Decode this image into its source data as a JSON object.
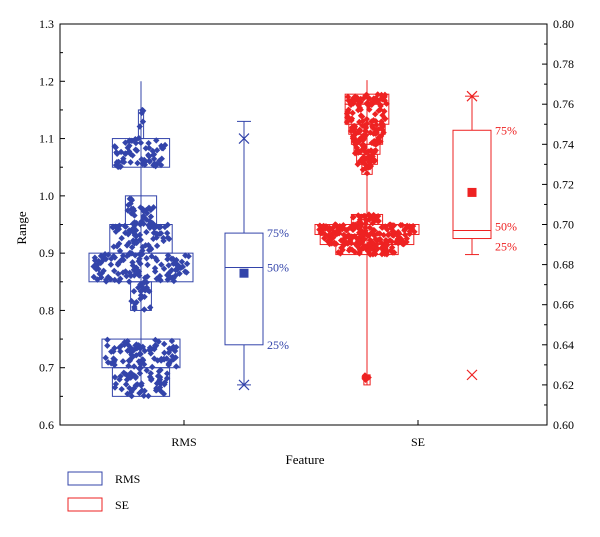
{
  "chart_data": {
    "type": "box_swarm",
    "xlabel": "Feature",
    "ylabel": "Range",
    "categories": [
      "RMS",
      "SE"
    ],
    "y_left": {
      "ylim": [
        0.6,
        1.3
      ],
      "ticks": [
        "0.6",
        "0.7",
        "0.8",
        "0.9",
        "1.0",
        "1.1",
        "1.2",
        "1.3"
      ]
    },
    "y_right": {
      "ylim": [
        0.6,
        0.8
      ],
      "ticks": [
        "0.60",
        "0.62",
        "0.64",
        "0.66",
        "0.68",
        "0.70",
        "0.72",
        "0.74",
        "0.76",
        "0.78",
        "0.80"
      ]
    },
    "series": [
      {
        "name": "RMS",
        "axis": "left",
        "color": "#3344aa",
        "histogram_bins": [
          {
            "lo": 0.65,
            "hi": 0.7,
            "rel_width": 0.55
          },
          {
            "lo": 0.7,
            "hi": 0.75,
            "rel_width": 0.75
          },
          {
            "lo": 0.8,
            "hi": 0.85,
            "rel_width": 0.2
          },
          {
            "lo": 0.85,
            "hi": 0.9,
            "rel_width": 1.0
          },
          {
            "lo": 0.9,
            "hi": 0.95,
            "rel_width": 0.6
          },
          {
            "lo": 0.95,
            "hi": 1.0,
            "rel_width": 0.3
          },
          {
            "lo": 1.05,
            "hi": 1.1,
            "rel_width": 0.55
          },
          {
            "lo": 1.1,
            "hi": 1.15,
            "rel_width": 0.05
          }
        ],
        "whisker_range": [
          0.665,
          1.2
        ],
        "points": {
          "count": 450
        },
        "box": {
          "q1": 0.74,
          "median": 0.875,
          "q3": 0.935,
          "mean": 0.865,
          "min": 0.67,
          "max": 1.13,
          "p1": 0.67,
          "p99": 1.1
        },
        "labels": {
          "q3": "75%",
          "median": "50%",
          "q1": "25%"
        }
      },
      {
        "name": "SE",
        "axis": "right",
        "color": "#ee2222",
        "histogram_bins": [
          {
            "lo": 0.62,
            "hi": 0.625,
            "rel_width": 0.06
          },
          {
            "lo": 0.685,
            "hi": 0.69,
            "rel_width": 0.6
          },
          {
            "lo": 0.69,
            "hi": 0.695,
            "rel_width": 0.9
          },
          {
            "lo": 0.695,
            "hi": 0.7,
            "rel_width": 1.0
          },
          {
            "lo": 0.7,
            "hi": 0.705,
            "rel_width": 0.3
          },
          {
            "lo": 0.725,
            "hi": 0.73,
            "rel_width": 0.1
          },
          {
            "lo": 0.73,
            "hi": 0.735,
            "rel_width": 0.2
          },
          {
            "lo": 0.735,
            "hi": 0.74,
            "rel_width": 0.25
          },
          {
            "lo": 0.74,
            "hi": 0.745,
            "rel_width": 0.3
          },
          {
            "lo": 0.745,
            "hi": 0.75,
            "rel_width": 0.35
          },
          {
            "lo": 0.75,
            "hi": 0.76,
            "rel_width": 0.42
          },
          {
            "lo": 0.76,
            "hi": 0.765,
            "rel_width": 0.42
          }
        ],
        "whisker_range": [
          0.62,
          0.772
        ],
        "points": {
          "count": 450
        },
        "box": {
          "q1": 0.693,
          "median": 0.697,
          "q3": 0.747,
          "mean": 0.716,
          "min": 0.685,
          "max": 0.764,
          "p1": 0.625,
          "p99": 0.764
        },
        "labels": {
          "q3": "75%",
          "median": "50%",
          "q1": "25%"
        }
      }
    ],
    "legend": {
      "position": "bottom-left",
      "entries": [
        "RMS",
        "SE"
      ]
    }
  }
}
